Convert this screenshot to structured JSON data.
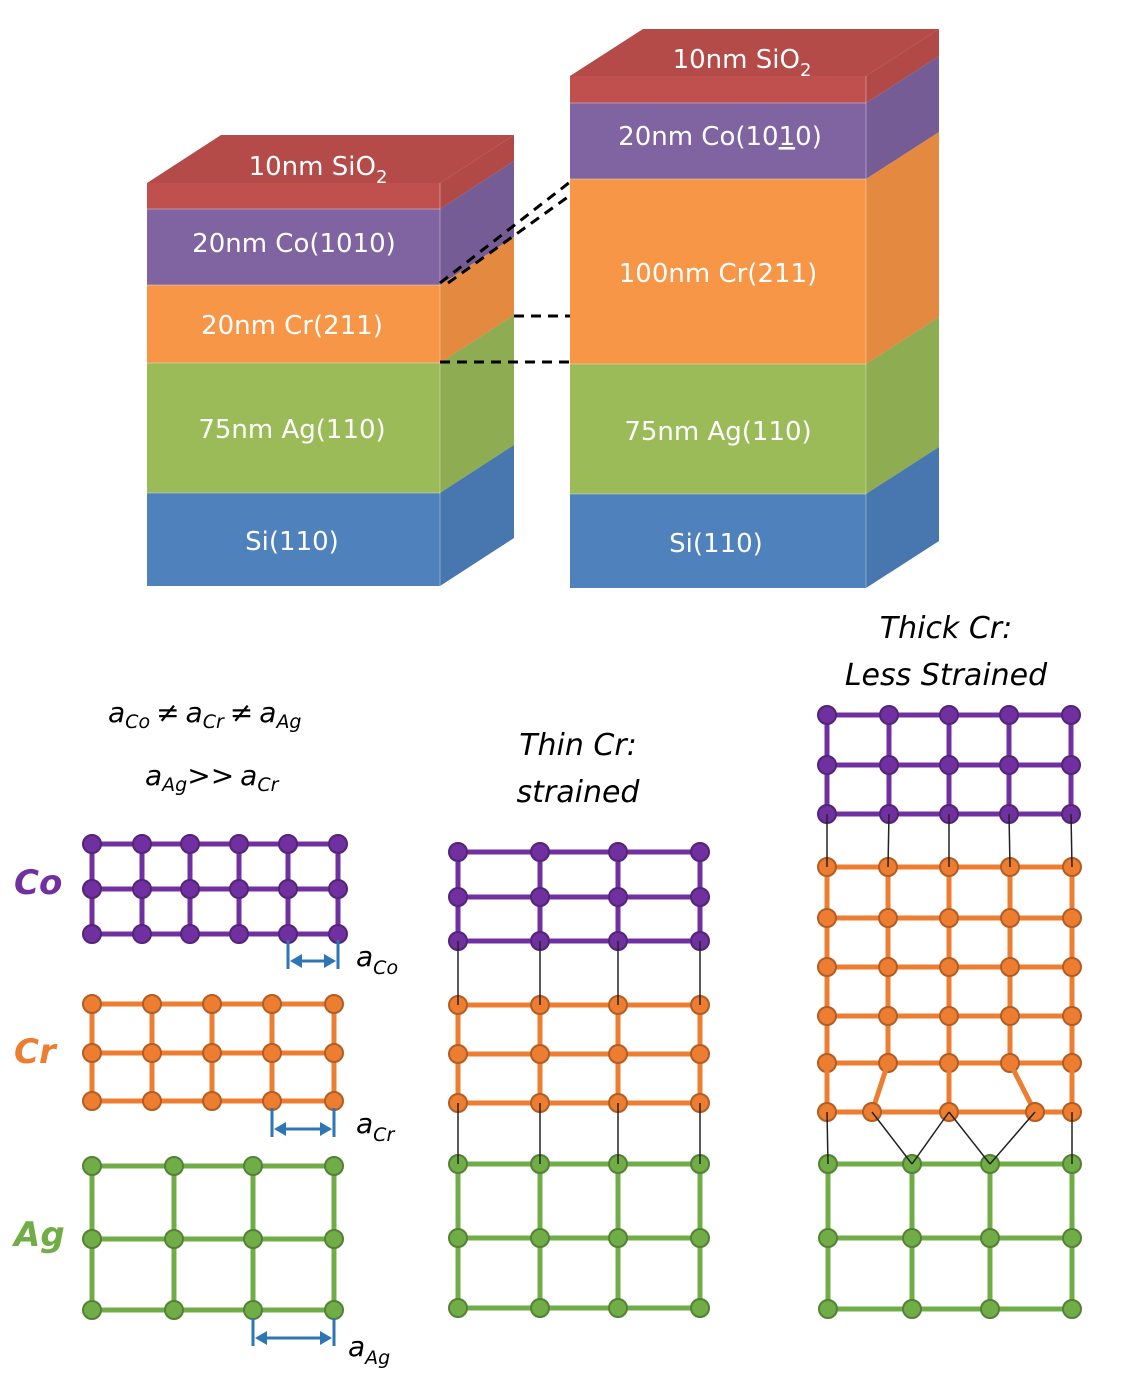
{
  "left_stack": {
    "layers": [
      {
        "text": "10nm SiO",
        "sub": "2"
      },
      {
        "text": "20nm Co(1010)"
      },
      {
        "text": "20nm Cr(211)"
      },
      {
        "text": "75nm Ag(110)"
      },
      {
        "text": "Si(110)"
      }
    ]
  },
  "right_stack": {
    "layers": [
      {
        "text": "10nm SiO",
        "sub": "2"
      },
      {
        "text_pre": "20nm Co(10",
        "text_underlined": "1",
        "text_post": "0)"
      },
      {
        "text": "100nm Cr(211)"
      },
      {
        "text": "75nm Ag(110)"
      },
      {
        "text": "Si(110)"
      }
    ]
  },
  "colors": {
    "sio2": "#c0504d",
    "co": "#8064a2",
    "cr": "#f79646",
    "ag": "#9bbb59",
    "si": "#4f81bd",
    "co_lattice": "#7030a0",
    "cr_lattice": "#ed7d31",
    "ag_lattice": "#70ad47",
    "arrow": "#2e75b6"
  },
  "legend": {
    "relation1": {
      "a": "a",
      "co": "Co",
      "neq": "≠",
      "cr": "Cr",
      "ag": "Ag"
    },
    "relation2": {
      "a": "a",
      "ag": "Ag",
      "gt": ">>",
      "cr": "Cr"
    },
    "labels": {
      "co": "Co",
      "cr": "Cr",
      "ag": "Ag"
    },
    "spacing": {
      "a": "a",
      "co": "Co",
      "cr": "Cr",
      "ag": "Ag"
    }
  },
  "panels": {
    "thin": {
      "line1": "Thin Cr:",
      "line2": "strained"
    },
    "thick": {
      "line1": "Thick Cr:",
      "line2": "Less Strained"
    }
  }
}
